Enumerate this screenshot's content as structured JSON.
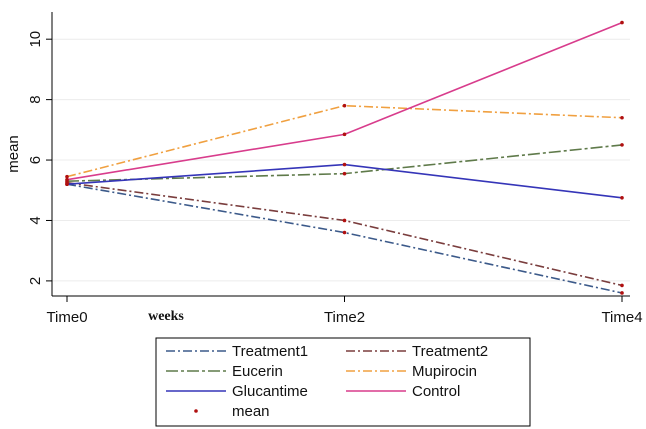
{
  "chart_data": {
    "type": "line",
    "categories": [
      "Time0",
      "Time2",
      "Time4"
    ],
    "ylabel": "mean",
    "x_annotation": "weeks",
    "ylim": [
      1.5,
      10.9
    ],
    "yticks": [
      "2",
      "4",
      "6",
      "8",
      "10"
    ],
    "grid": true,
    "legend_placement": "bottom",
    "series": [
      {
        "name": "Treatment1",
        "values": [
          5.2,
          3.6,
          1.6
        ],
        "color": "#3c5a8a",
        "dash": "dashdot"
      },
      {
        "name": "Treatment2",
        "values": [
          5.25,
          4.0,
          1.85
        ],
        "color": "#7a3d3d",
        "dash": "dashdot"
      },
      {
        "name": "Eucerin",
        "values": [
          5.3,
          5.55,
          6.5
        ],
        "color": "#5f7a4a",
        "dash": "longdash"
      },
      {
        "name": "Mupirocin",
        "values": [
          5.45,
          7.8,
          7.4
        ],
        "color": "#f0a040",
        "dash": "dashdot"
      },
      {
        "name": "Glucantime",
        "values": [
          5.2,
          5.85,
          4.75
        ],
        "color": "#3535b8",
        "dash": "solid"
      },
      {
        "name": "Control",
        "values": [
          5.35,
          6.85,
          10.55
        ],
        "color": "#d83c8c",
        "dash": "solid"
      }
    ],
    "mean_marker": {
      "name": "mean",
      "color": "#b01010"
    }
  }
}
